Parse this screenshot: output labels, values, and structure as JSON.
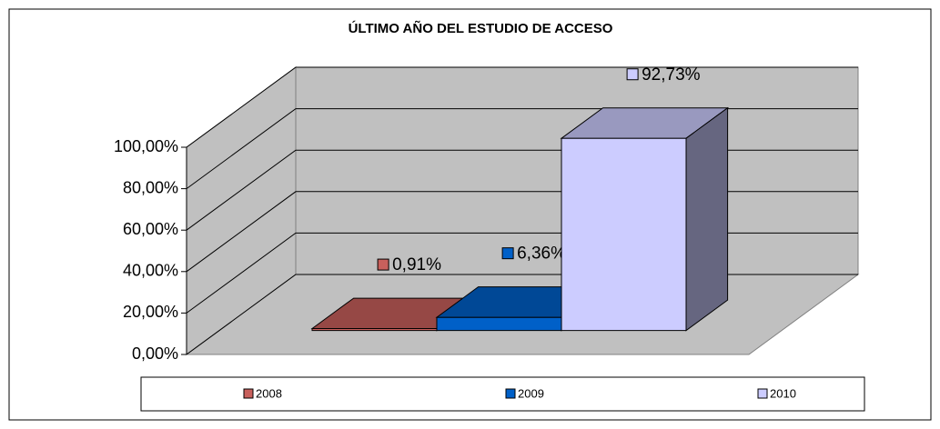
{
  "chart_data": {
    "type": "bar3d",
    "title": "ÚLTIMO AÑO DEL ESTUDIO DE ACCESO",
    "ylim": [
      0,
      100
    ],
    "yticks": [
      {
        "value": 0,
        "label": "0,00%"
      },
      {
        "value": 20,
        "label": "20,00%"
      },
      {
        "value": 40,
        "label": "40,00%"
      },
      {
        "value": 60,
        "label": "60,00%"
      },
      {
        "value": 80,
        "label": "80,00%"
      },
      {
        "value": 100,
        "label": "100,00%"
      }
    ],
    "grid": true,
    "legend": "bottom",
    "series": [
      {
        "name": "2008",
        "color": "#c8605c",
        "values": [
          0.91
        ],
        "value_labels": [
          "0,91%"
        ]
      },
      {
        "name": "2009",
        "color": "#0060c8",
        "values": [
          6.36
        ],
        "value_labels": [
          "6,36%"
        ]
      },
      {
        "name": "2010",
        "color": "#ccccff",
        "values": [
          92.73
        ],
        "value_labels": [
          "92,73%"
        ]
      }
    ]
  }
}
